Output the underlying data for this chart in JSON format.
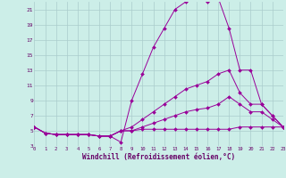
{
  "background_color": "#cceee8",
  "grid_color": "#aacccc",
  "line_color": "#990099",
  "marker_color": "#990099",
  "xlabel": "Windchill (Refroidissement éolien,°C)",
  "xlabel_color": "#660066",
  "tick_color": "#660066",
  "xlim": [
    0,
    23
  ],
  "ylim": [
    3,
    22
  ],
  "xticks": [
    0,
    1,
    2,
    3,
    4,
    5,
    6,
    7,
    8,
    9,
    10,
    11,
    12,
    13,
    14,
    15,
    16,
    17,
    18,
    19,
    20,
    21,
    22,
    23
  ],
  "yticks": [
    3,
    5,
    7,
    9,
    11,
    13,
    15,
    17,
    19,
    21
  ],
  "series": [
    {
      "x": [
        0,
        1,
        2,
        3,
        4,
        5,
        6,
        7,
        8,
        9,
        10,
        11,
        12,
        13,
        14,
        15,
        16,
        17,
        18,
        19,
        20,
        21,
        22,
        23
      ],
      "y": [
        5.5,
        4.7,
        4.5,
        4.5,
        4.5,
        4.5,
        4.3,
        4.3,
        3.5,
        9.0,
        12.5,
        16.0,
        18.5,
        21.0,
        22.0,
        22.5,
        22.0,
        22.5,
        18.5,
        13.0,
        13.0,
        8.5,
        7.0,
        5.5
      ]
    },
    {
      "x": [
        0,
        1,
        2,
        3,
        4,
        5,
        6,
        7,
        8,
        9,
        10,
        11,
        12,
        13,
        14,
        15,
        16,
        17,
        18,
        19,
        20,
        21,
        22,
        23
      ],
      "y": [
        5.5,
        4.7,
        4.5,
        4.5,
        4.5,
        4.5,
        4.3,
        4.3,
        5.0,
        5.5,
        6.5,
        7.5,
        8.5,
        9.5,
        10.5,
        11.0,
        11.5,
        12.5,
        13.0,
        10.0,
        8.5,
        8.5,
        7.0,
        5.5
      ]
    },
    {
      "x": [
        0,
        1,
        2,
        3,
        4,
        5,
        6,
        7,
        8,
        9,
        10,
        11,
        12,
        13,
        14,
        15,
        16,
        17,
        18,
        19,
        20,
        21,
        22,
        23
      ],
      "y": [
        5.5,
        4.7,
        4.5,
        4.5,
        4.5,
        4.5,
        4.3,
        4.3,
        5.0,
        5.0,
        5.5,
        6.0,
        6.5,
        7.0,
        7.5,
        7.8,
        8.0,
        8.5,
        9.5,
        8.5,
        7.5,
        7.5,
        6.5,
        5.5
      ]
    },
    {
      "x": [
        0,
        1,
        2,
        3,
        4,
        5,
        6,
        7,
        8,
        9,
        10,
        11,
        12,
        13,
        14,
        15,
        16,
        17,
        18,
        19,
        20,
        21,
        22,
        23
      ],
      "y": [
        5.5,
        4.7,
        4.5,
        4.5,
        4.5,
        4.5,
        4.3,
        4.3,
        5.0,
        5.0,
        5.2,
        5.2,
        5.2,
        5.2,
        5.2,
        5.2,
        5.2,
        5.2,
        5.2,
        5.5,
        5.5,
        5.5,
        5.5,
        5.5
      ]
    }
  ]
}
